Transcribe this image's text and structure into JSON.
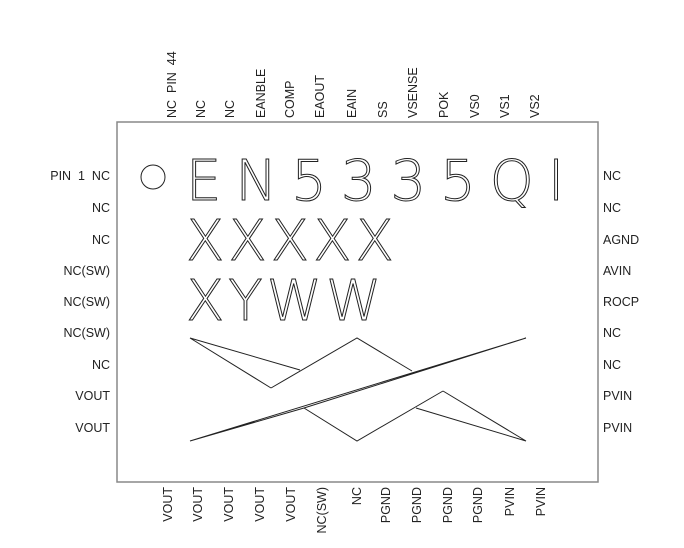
{
  "package": {
    "marking_line1": "EN5335QI",
    "marking_line2": "XXXXX",
    "marking_line3": "XYWW",
    "pin1_indicator": "circle"
  },
  "pins": {
    "top": [
      "NC  PIN  44",
      "NC",
      "NC",
      "EANBLE",
      "COMP",
      "EAOUT",
      "EAIN",
      "SS",
      "VSENSE",
      "POK",
      "VS0",
      "VS1",
      "VS2"
    ],
    "bottom": [
      "VOUT",
      "VOUT",
      "VOUT",
      "VOUT",
      "VOUT",
      "NC(SW)",
      "NC",
      "PGND",
      "PGND",
      "PGND",
      "PGND",
      "PVIN",
      "PVIN"
    ],
    "left": [
      "PIN  1  NC",
      "NC",
      "NC",
      "NC(SW)",
      "NC(SW)",
      "NC(SW)",
      "NC",
      "VOUT",
      "VOUT"
    ],
    "right": [
      "NC",
      "NC",
      "AGND",
      "AVIN",
      "ROCP",
      "NC",
      "NC",
      "PVIN",
      "PVIN"
    ]
  },
  "colors": {
    "line": "#222222",
    "background": "#ffffff"
  }
}
